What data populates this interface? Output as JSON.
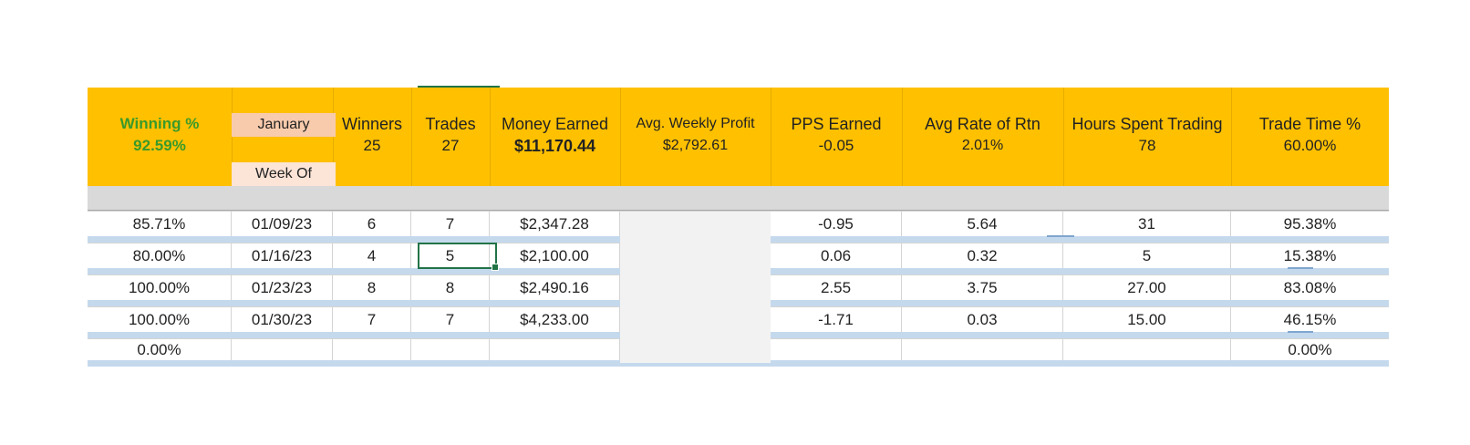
{
  "header": {
    "winning_pct_label": "Winning %",
    "winning_pct_value": "92.59%",
    "month_label": "January",
    "week_of_label": "Week Of",
    "winners_label": "Winners",
    "winners_value": "25",
    "trades_label": "Trades",
    "trades_value": "27",
    "money_label": "Money Earned",
    "money_value": "$11,170.44",
    "avg_weekly_label": "Avg. Weekly Profit",
    "avg_weekly_value": "$2,792.61",
    "pps_label": "PPS Earned",
    "pps_value": "-0.05",
    "avg_rate_label": "Avg Rate of Rtn",
    "avg_rate_value": "2.01%",
    "hours_label": "Hours Spent Trading",
    "hours_value": "78",
    "trade_time_label": "Trade Time %",
    "trade_time_value": "60.00%"
  },
  "rows": [
    {
      "win_pct": "85.71%",
      "week": "01/09/23",
      "winners": "6",
      "trades": "7",
      "money": "$2,347.28",
      "pps": "-0.95",
      "rate": "5.64",
      "hours": "31",
      "time_pct": "95.38%"
    },
    {
      "win_pct": "80.00%",
      "week": "01/16/23",
      "winners": "4",
      "trades": "5",
      "money": "$2,100.00",
      "pps": "0.06",
      "rate": "0.32",
      "hours": "5",
      "time_pct": "15.38%"
    },
    {
      "win_pct": "100.00%",
      "week": "01/23/23",
      "winners": "8",
      "trades": "8",
      "money": "$2,490.16",
      "pps": "2.55",
      "rate": "3.75",
      "hours": "27.00",
      "time_pct": "83.08%"
    },
    {
      "win_pct": "100.00%",
      "week": "01/30/23",
      "winners": "7",
      "trades": "7",
      "money": "$4,233.00",
      "pps": "-1.71",
      "rate": "0.03",
      "hours": "15.00",
      "time_pct": "46.15%"
    },
    {
      "win_pct": "0.00%",
      "week": "",
      "winners": "",
      "trades": "",
      "money": "",
      "pps": "",
      "rate": "",
      "hours": "",
      "time_pct": "0.00%"
    }
  ],
  "colors": {
    "header_band": "#ffc000",
    "gray_band": "#d9d9d9",
    "stripe": "#c5d9ed",
    "winning_green": "#3a9a2a",
    "month_tag": "#f8cbad",
    "week_tag": "#fce4d6",
    "selection": "#217346"
  }
}
